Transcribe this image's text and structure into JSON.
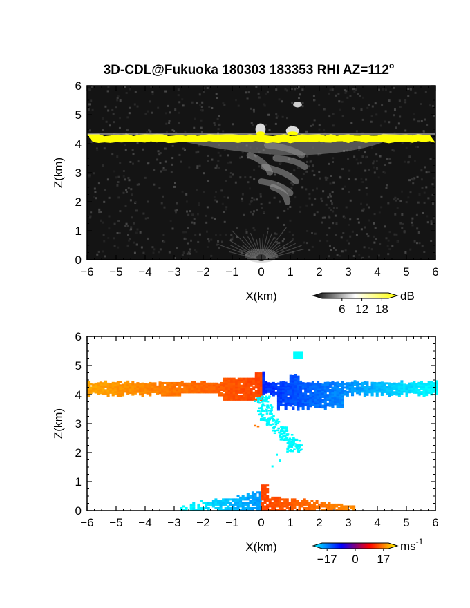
{
  "title": "3D-CDL@Fukuoka 180303 183353 RHI AZ=112",
  "title_degree": "o",
  "chart_data": [
    {
      "type": "heatmap",
      "panel": "backscatter",
      "xlabel": "X(km)",
      "ylabel": "Z(km)",
      "xlim": [
        -6,
        6
      ],
      "ylim": [
        0,
        6
      ],
      "xticks": [
        "-6",
        "-5",
        "-4",
        "-3",
        "-2",
        "-1",
        "0",
        "1",
        "2",
        "3",
        "4",
        "5",
        "6"
      ],
      "yticks": [
        "0",
        "1",
        "2",
        "3",
        "4",
        "5",
        "6"
      ],
      "background_color": "#141414",
      "colorbar": {
        "unit": "dB",
        "ticks": [
          "6",
          "12",
          "18"
        ],
        "range": [
          0,
          20
        ],
        "colors": [
          "#000000",
          "#ffffff",
          "#ffff00"
        ]
      },
      "features": {
        "cloud_layer": {
          "x": [
            -6,
            6
          ],
          "z": [
            4.05,
            4.3
          ],
          "color": "#ffff00"
        },
        "turrets": [
          {
            "x": [
              -0.2,
              0.15
            ],
            "z": [
              4.3,
              4.7
            ]
          },
          {
            "x": [
              0.85,
              1.3
            ],
            "z": [
              4.3,
              4.6
            ]
          },
          {
            "x": [
              1.1,
              1.4
            ],
            "z": [
              5.25,
              5.45
            ]
          }
        ],
        "fallstreak": {
          "x": [
            -0.5,
            1.8
          ],
          "z": [
            1.9,
            4.0
          ],
          "color": "#9a9a9a"
        },
        "ground_echo": {
          "x": [
            -0.6,
            0.6
          ],
          "z": [
            0,
            0.6
          ]
        }
      }
    },
    {
      "type": "heatmap",
      "panel": "doppler_velocity",
      "xlabel": "X(km)",
      "ylabel": "Z(km)",
      "xlim": [
        -6,
        6
      ],
      "ylim": [
        0,
        6
      ],
      "xticks": [
        "-6",
        "-5",
        "-4",
        "-3",
        "-2",
        "-1",
        "0",
        "1",
        "2",
        "3",
        "4",
        "5",
        "6"
      ],
      "yticks": [
        "0",
        "1",
        "2",
        "3",
        "4",
        "5",
        "6"
      ],
      "background_color": "#ffffff",
      "colorbar": {
        "unit": "ms",
        "unit_exponent": "-1",
        "ticks": [
          "−17",
          "0",
          "17"
        ],
        "range": [
          -20,
          20
        ],
        "colors": [
          "#00ffff",
          "#0000ff",
          "#ff0000",
          "#ffff00"
        ]
      },
      "features": {
        "cloud_layer": {
          "x": [
            -6,
            6
          ],
          "z": [
            3.85,
            4.45
          ],
          "velocity_left": 12,
          "velocity_right": -15
        },
        "fallstreak": {
          "x": [
            -0.3,
            1.2
          ],
          "z": [
            2.0,
            3.9
          ],
          "velocity": -18
        },
        "turret": {
          "x": [
            1.1,
            1.4
          ],
          "z": [
            5.25,
            5.45
          ],
          "velocity": -18
        },
        "low_echo_negative": {
          "x": [
            -2.8,
            0
          ],
          "z": [
            0,
            0.6
          ],
          "velocity": -14
        },
        "low_echo_positive": {
          "x": [
            0,
            3.2
          ],
          "z": [
            0,
            0.7
          ],
          "velocity": 12
        }
      }
    }
  ]
}
